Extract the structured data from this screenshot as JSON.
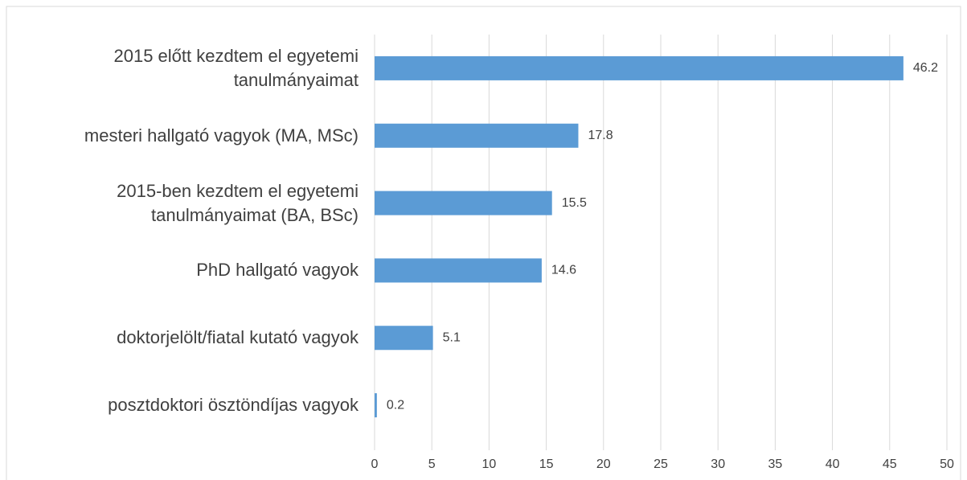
{
  "chart_data": {
    "type": "bar",
    "orientation": "horizontal",
    "categories": [
      "2015 előtt kezdtem el egyetemi tanulmányaimat",
      "mesteri hallgató vagyok (MA, MSc)",
      "2015-ben kezdtem el egyetemi tanulmányaimat (BA, BSc)",
      "PhD hallgató vagyok",
      "doktorjelölt/fiatal kutató vagyok",
      "posztdoktori ösztöndíjas vagyok"
    ],
    "values": [
      46.2,
      17.8,
      15.5,
      14.6,
      5.1,
      0.2
    ],
    "value_labels": [
      "46.2",
      "17.8",
      "15.5",
      "14.6",
      "5.1",
      "0.2"
    ],
    "color": "#5b9bd5",
    "xlim": [
      0,
      50
    ],
    "xticks": [
      0,
      5,
      10,
      15,
      20,
      25,
      30,
      35,
      40,
      45,
      50
    ],
    "grid": true
  }
}
